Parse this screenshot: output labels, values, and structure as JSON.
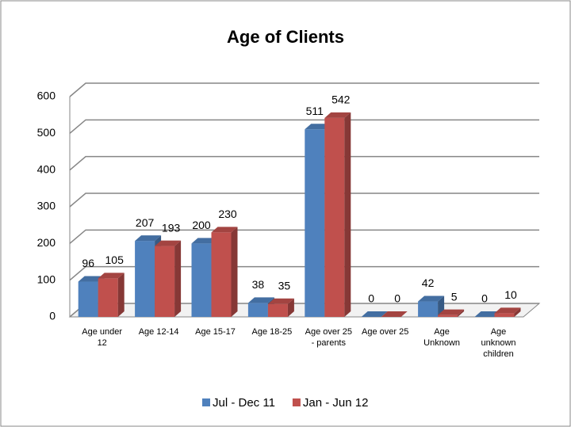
{
  "chart_data": {
    "type": "bar",
    "title": "Age of Clients",
    "categories": [
      "Age under 12",
      "Age 12-14",
      "Age 15-17",
      "Age 18-25",
      "Age over 25 - parents",
      "Age over 25",
      "Age Unknown",
      "Age unknown children"
    ],
    "series": [
      {
        "name": "Jul - Dec 11",
        "color": "#4f81bd",
        "values": [
          96,
          207,
          200,
          38,
          511,
          0,
          42,
          0
        ]
      },
      {
        "name": "Jan - Jun 12",
        "color": "#c0504d",
        "values": [
          105,
          193,
          230,
          35,
          542,
          0,
          5,
          10
        ]
      }
    ],
    "ylim": [
      0,
      600
    ],
    "yticks": [
      0,
      100,
      200,
      300,
      400,
      500,
      600
    ],
    "grid": true,
    "legend": "bottom"
  }
}
